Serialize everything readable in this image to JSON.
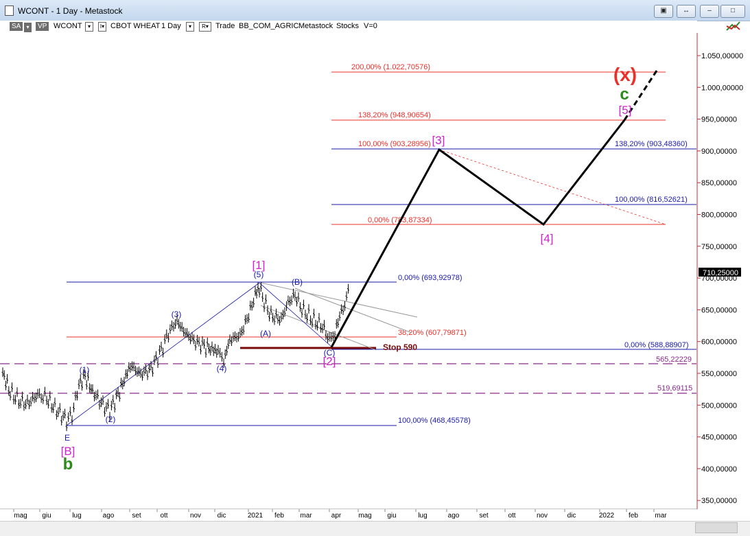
{
  "window": {
    "title": "WCONT - 1 Day - Metastock",
    "buttons": [
      "▣",
      "↔",
      "–",
      "□",
      "✕"
    ]
  },
  "toolbar": {
    "sa_badge": "SA",
    "vp_badge": "VP",
    "symbol": "WCONT",
    "flag1": "▾",
    "flag2": "I▾",
    "name": "CBOT WHEAT",
    "period": "1 Day",
    "flag3": "▾",
    "r_box": "R▾",
    "trade": "Trade",
    "source": "BB_COM_AGRIC",
    "vendor": "Metastock",
    "stocks": "Stocks",
    "v_value": "V=0"
  },
  "y_axis": {
    "ticks": [
      "1.050,00000",
      "1.000,00000",
      "950,00000",
      "900,00000",
      "850,00000",
      "800,00000",
      "750,00000",
      "700,00000",
      "650,00000",
      "600,00000",
      "550,00000",
      "500,00000",
      "450,00000",
      "400,00000",
      "350,00000"
    ],
    "last_price": "710,25000"
  },
  "x_axis": {
    "months": [
      "mag",
      "giu",
      "lug",
      "ago",
      "set",
      "ott",
      "nov",
      "dic",
      "2021",
      "feb",
      "mar",
      "apr",
      "mag",
      "giu",
      "lug",
      "ago",
      "set",
      "ott",
      "nov",
      "dic",
      "2022",
      "feb",
      "mar"
    ]
  },
  "fib_labels": {
    "f200": "200,00% (1.022,70576)",
    "f1382_a": "138,20% (948,90654)",
    "f100_a": "100,00% (903,28956)",
    "f1382_b": "138,20% (903,48360)",
    "f100_b": "100,00% (816,52621)",
    "f0_a": "0,00% (783,87334)",
    "f0_b": "0,00% (693,92978)",
    "f382": "38,20% (607,79871)",
    "f0_c": "0,00% (588,88907)",
    "l565": "565,22229",
    "l519": "519,69115",
    "f100_c": "100,00% (468,45578)"
  },
  "wave_labels": {
    "x": "(x)",
    "c": "c",
    "w5": "[5]",
    "w3": "[3]",
    "w4": "[4]",
    "w1": "[1]",
    "w2": "[2]",
    "wB_big": "[B]",
    "b_small": "b",
    "E": "E",
    "p1": "(1)",
    "p2": "(2)",
    "p3": "(3)",
    "p4": "(4)",
    "p5": "(5)",
    "pA": "(A)",
    "pB": "(B)",
    "pC": "(C)",
    "stop": "Stop 590"
  },
  "colors": {
    "red": "#e8312a",
    "blue": "#1a1aa8",
    "magenta": "#d020d0",
    "green": "#2a8a1a",
    "darkred": "#7a0a0a",
    "purple_dash": "#8a2a8a"
  }
}
